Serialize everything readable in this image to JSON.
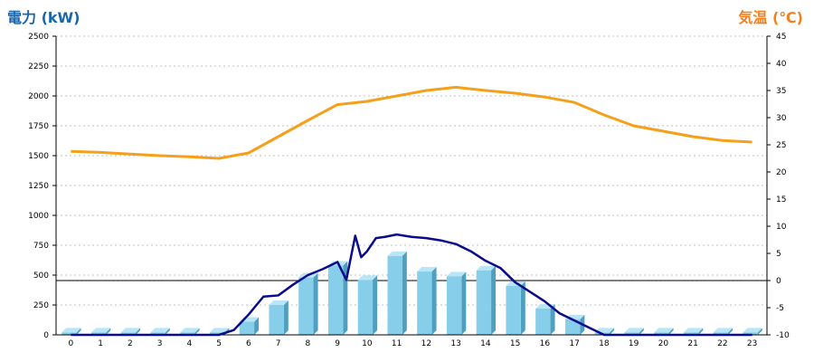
{
  "colors": {
    "left_title": "#1a66a8",
    "right_title": "#f2801f",
    "bar_front": "#87ceeb",
    "bar_side": "#4f9fc0",
    "bar_top": "#b9e6f6",
    "power_line": "#0a0a8c",
    "temp_line": "#f5a01a",
    "axis": "#000000"
  },
  "chart_data": {
    "type": "bar",
    "title": "",
    "ylabel_left": "電力 (kW)",
    "ylabel_right": "気温 (℃)",
    "categories": [
      "0",
      "1",
      "2",
      "3",
      "4",
      "5",
      "6",
      "7",
      "8",
      "9",
      "10",
      "11",
      "12",
      "13",
      "14",
      "15",
      "16",
      "17",
      "18",
      "19",
      "20",
      "21",
      "22",
      "23"
    ],
    "y_left": {
      "min": 0,
      "max": 2500,
      "ticks": [
        "0",
        "250",
        "500",
        "750",
        "1000",
        "1250",
        "1500",
        "1750",
        "2000",
        "2250",
        "2500"
      ]
    },
    "y_right": {
      "min": -10,
      "max": 45,
      "ticks": [
        "-10",
        "-5",
        "0",
        "5",
        "10",
        "15",
        "20",
        "25",
        "30",
        "35",
        "40",
        "45"
      ]
    },
    "grid": true,
    "bars": {
      "axis": "left",
      "values": [
        20,
        20,
        20,
        20,
        20,
        20,
        110,
        250,
        480,
        580,
        460,
        660,
        530,
        490,
        540,
        410,
        220,
        130,
        20,
        20,
        20,
        20,
        20,
        20
      ]
    },
    "power_line": {
      "axis": "left",
      "x": [
        0,
        5,
        5.5,
        6,
        6.5,
        7,
        7.5,
        8,
        8.5,
        9,
        9.3,
        9.6,
        9.8,
        10,
        10.3,
        10.6,
        11,
        11.5,
        12,
        12.5,
        13,
        13.5,
        14,
        14.5,
        15,
        15.5,
        16,
        16.5,
        17,
        17.5,
        18,
        19,
        20,
        21,
        22,
        23
      ],
      "values": [
        0,
        0,
        40,
        170,
        320,
        330,
        420,
        500,
        550,
        610,
        460,
        830,
        650,
        700,
        810,
        820,
        840,
        820,
        810,
        790,
        760,
        700,
        620,
        560,
        440,
        360,
        280,
        180,
        120,
        60,
        0,
        0,
        0,
        0,
        0,
        0
      ]
    },
    "temperature": {
      "axis": "right",
      "values": [
        23.8,
        23.6,
        23.3,
        23.0,
        22.8,
        22.5,
        23.5,
        26.5,
        29.5,
        32.4,
        33.0,
        34.0,
        35.0,
        35.6,
        35.0,
        34.5,
        33.8,
        32.8,
        30.5,
        28.5,
        27.5,
        26.5,
        25.8,
        25.5
      ]
    }
  }
}
